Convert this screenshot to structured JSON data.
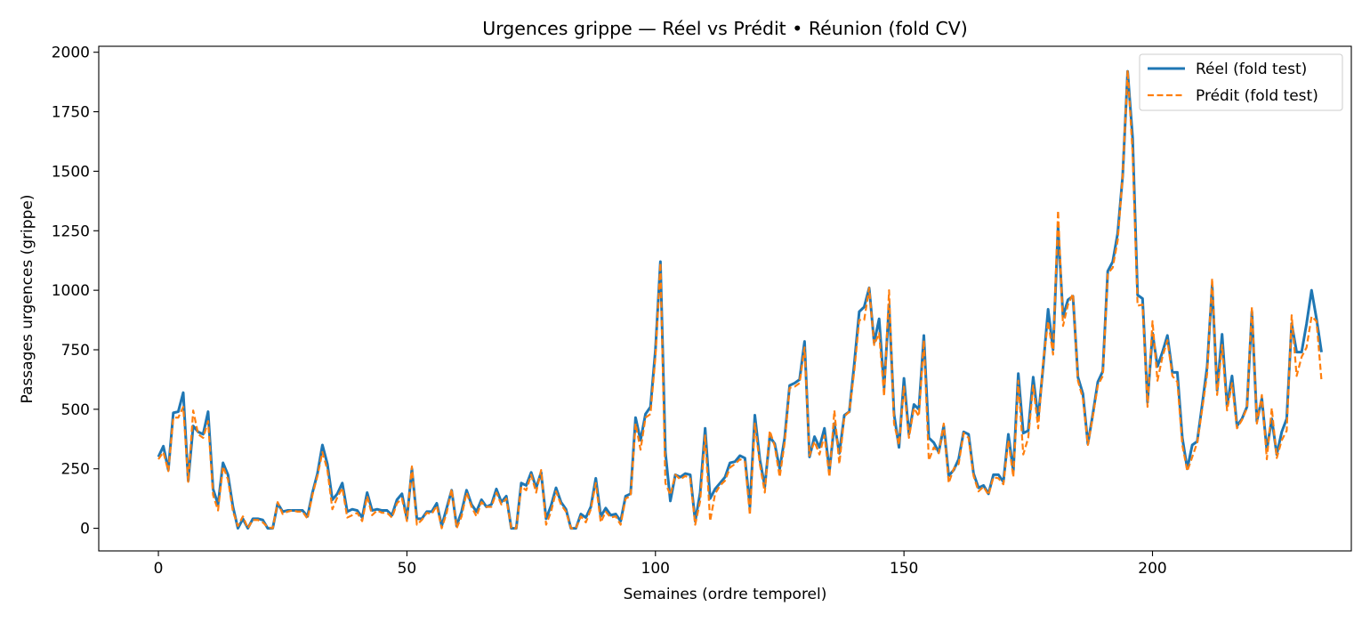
{
  "chart_data": {
    "type": "line",
    "title": "Urgences grippe — Réel vs Prédit • Réunion (fold CV)",
    "xlabel": "Semaines (ordre temporel)",
    "ylabel": "Passages urgences (grippe)",
    "xlim": [
      -12,
      240
    ],
    "ylim": [
      -95,
      2025
    ],
    "xticks": [
      0,
      50,
      100,
      150,
      200
    ],
    "yticks": [
      0,
      250,
      500,
      750,
      1000,
      1250,
      1500,
      1750,
      2000
    ],
    "grid": false,
    "legend_position": "top-right",
    "series": [
      {
        "name": "Réel (fold test)",
        "color": "#1f77b4",
        "style": "solid",
        "values": [
          300,
          345,
          245,
          485,
          490,
          570,
          200,
          430,
          405,
          395,
          490,
          165,
          100,
          275,
          225,
          90,
          0,
          40,
          0,
          40,
          40,
          35,
          0,
          0,
          105,
          70,
          75,
          75,
          75,
          75,
          50,
          150,
          230,
          350,
          270,
          120,
          145,
          190,
          70,
          80,
          75,
          45,
          150,
          75,
          80,
          75,
          75,
          55,
          120,
          145,
          40,
          250,
          40,
          40,
          70,
          70,
          105,
          10,
          85,
          160,
          10,
          70,
          160,
          100,
          70,
          120,
          90,
          100,
          165,
          110,
          135,
          0,
          0,
          190,
          180,
          235,
          170,
          235,
          40,
          95,
          170,
          110,
          80,
          0,
          0,
          60,
          45,
          90,
          210,
          50,
          85,
          55,
          60,
          30,
          135,
          145,
          465,
          370,
          480,
          510,
          750,
          1120,
          320,
          115,
          225,
          215,
          230,
          225,
          30,
          150,
          420,
          125,
          165,
          190,
          215,
          275,
          280,
          305,
          295,
          90,
          475,
          290,
          175,
          385,
          355,
          250,
          380,
          600,
          610,
          625,
          785,
          300,
          385,
          340,
          420,
          240,
          440,
          315,
          475,
          490,
          690,
          910,
          930,
          1010,
          780,
          880,
          590,
          940,
          480,
          340,
          630,
          395,
          520,
          500,
          810,
          380,
          360,
          320,
          430,
          220,
          245,
          290,
          405,
          395,
          230,
          170,
          180,
          145,
          225,
          225,
          195,
          395,
          240,
          650,
          400,
          410,
          635,
          460,
          680,
          920,
          750,
          1265,
          890,
          960,
          975,
          635,
          565,
          355,
          480,
          615,
          660,
          1080,
          1120,
          1240,
          1480,
          1920,
          1640,
          980,
          965,
          530,
          820,
          680,
          740,
          810,
          655,
          655,
          380,
          250,
          350,
          365,
          520,
          680,
          1020,
          580,
          815,
          515,
          640,
          430,
          460,
          510,
          910,
          450,
          545,
          330,
          460,
          310,
          405,
          460,
          860,
          740,
          740,
          860,
          1000,
          880,
          740
        ]
      },
      {
        "name": "Prédit (fold test)",
        "color": "#ff7f0e",
        "style": "dashed",
        "values": [
          290,
          320,
          240,
          465,
          465,
          510,
          195,
          495,
          395,
          380,
          450,
          140,
          75,
          260,
          205,
          70,
          10,
          50,
          0,
          35,
          35,
          25,
          5,
          0,
          110,
          60,
          70,
          75,
          70,
          70,
          40,
          140,
          220,
          320,
          245,
          80,
          130,
          170,
          45,
          55,
          65,
          30,
          135,
          55,
          75,
          65,
          65,
          45,
          105,
          125,
          30,
          260,
          15,
          35,
          65,
          60,
          95,
          0,
          65,
          165,
          0,
          50,
          150,
          90,
          50,
          110,
          90,
          90,
          150,
          100,
          125,
          0,
          0,
          175,
          160,
          225,
          150,
          245,
          15,
          70,
          155,
          100,
          70,
          0,
          0,
          50,
          25,
          80,
          190,
          25,
          70,
          45,
          50,
          15,
          125,
          135,
          440,
          330,
          465,
          480,
          720,
          1115,
          190,
          140,
          225,
          205,
          220,
          210,
          15,
          115,
          390,
          30,
          145,
          180,
          200,
          255,
          270,
          290,
          280,
          55,
          440,
          270,
          150,
          410,
          345,
          215,
          360,
          590,
          595,
          610,
          760,
          305,
          365,
          310,
          390,
          215,
          495,
          270,
          470,
          490,
          660,
          875,
          875,
          1010,
          770,
          820,
          555,
          1000,
          440,
          350,
          595,
          380,
          505,
          470,
          790,
          285,
          340,
          315,
          440,
          190,
          250,
          270,
          400,
          380,
          220,
          155,
          175,
          140,
          215,
          210,
          185,
          370,
          215,
          620,
          310,
          380,
          600,
          420,
          700,
          870,
          730,
          1335,
          850,
          940,
          985,
          620,
          545,
          350,
          470,
          600,
          640,
          1070,
          1095,
          1210,
          1480,
          1925,
          1575,
          935,
          940,
          510,
          870,
          620,
          720,
          790,
          640,
          615,
          350,
          240,
          300,
          360,
          500,
          650,
          1050,
          560,
          770,
          495,
          610,
          420,
          455,
          505,
          930,
          440,
          560,
          290,
          505,
          295,
          370,
          410,
          895,
          640,
          720,
          760,
          890,
          870,
          620
        ]
      }
    ]
  }
}
